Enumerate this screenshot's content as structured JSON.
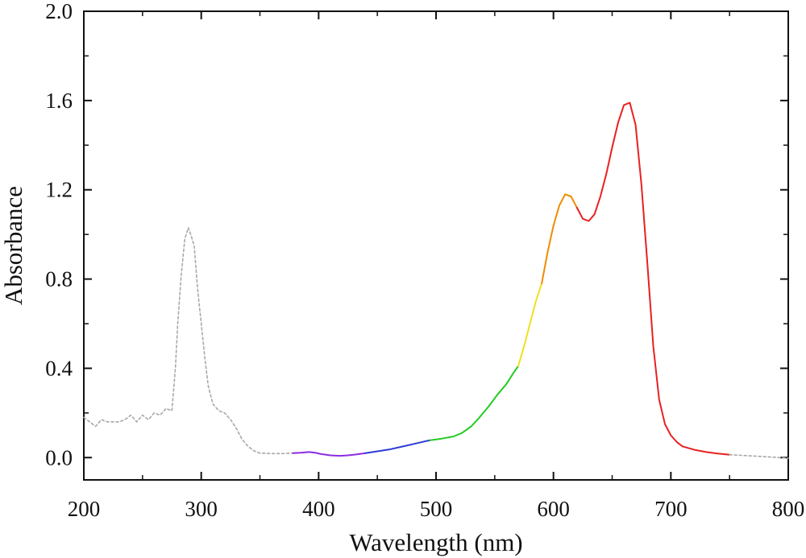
{
  "chart_data": {
    "type": "line",
    "xlabel": "Wavelength (nm)",
    "ylabel": "Absorbance",
    "xlim": [
      200,
      800
    ],
    "ylim": [
      -0.1,
      2.0
    ],
    "x_ticks": [
      200,
      300,
      400,
      500,
      600,
      700,
      800
    ],
    "x_tick_labels": [
      "200",
      "300",
      "400",
      "500",
      "600",
      "700",
      "800"
    ],
    "y_ticks": [
      0.0,
      0.4,
      0.8,
      1.2,
      1.6,
      2.0
    ],
    "y_tick_labels": [
      "0.0",
      "0.4",
      "0.8",
      "1.2",
      "1.6",
      "2.0"
    ],
    "grid": false,
    "legend": "none",
    "series": [
      {
        "style": "dotted",
        "color": "#a8a8a8",
        "x": [
          200,
          205,
          210,
          215,
          220,
          225,
          230,
          235,
          240,
          245,
          250,
          255,
          260,
          265,
          270,
          275,
          278,
          280,
          283,
          286,
          289,
          291,
          294,
          297,
          300,
          303,
          306,
          310,
          315,
          320,
          325,
          330,
          335,
          340,
          345,
          350,
          360,
          370,
          378
        ],
        "y": [
          0.18,
          0.16,
          0.14,
          0.17,
          0.16,
          0.16,
          0.16,
          0.17,
          0.19,
          0.16,
          0.19,
          0.17,
          0.2,
          0.19,
          0.22,
          0.21,
          0.4,
          0.6,
          0.82,
          0.98,
          1.03,
          1.0,
          0.95,
          0.75,
          0.6,
          0.45,
          0.32,
          0.24,
          0.21,
          0.2,
          0.17,
          0.13,
          0.08,
          0.05,
          0.03,
          0.02,
          0.018,
          0.018,
          0.02
        ]
      },
      {
        "style": "solid",
        "color": "#8a2be2",
        "x": [
          378,
          385,
          392,
          397,
          402,
          410,
          418,
          425,
          432,
          440
        ],
        "y": [
          0.02,
          0.022,
          0.025,
          0.022,
          0.016,
          0.01,
          0.008,
          0.01,
          0.014,
          0.02
        ]
      },
      {
        "style": "solid",
        "color": "#2b3bd6",
        "x": [
          440,
          450,
          460,
          470,
          480,
          490,
          495
        ],
        "y": [
          0.02,
          0.028,
          0.036,
          0.048,
          0.06,
          0.072,
          0.078
        ]
      },
      {
        "style": "solid",
        "color": "#22cc22",
        "x": [
          495,
          505,
          515,
          522,
          530,
          537,
          545,
          552,
          560,
          566,
          570
        ],
        "y": [
          0.078,
          0.085,
          0.095,
          0.11,
          0.14,
          0.18,
          0.23,
          0.28,
          0.33,
          0.38,
          0.41
        ]
      },
      {
        "style": "solid",
        "color": "#f0e020",
        "x": [
          570,
          575,
          580,
          585,
          590
        ],
        "y": [
          0.41,
          0.5,
          0.6,
          0.7,
          0.78
        ]
      },
      {
        "style": "solid",
        "color": "#f08c00",
        "x": [
          590,
          595,
          600,
          605,
          610,
          615,
          620
        ],
        "y": [
          0.78,
          0.92,
          1.04,
          1.13,
          1.18,
          1.17,
          1.12
        ]
      },
      {
        "style": "solid",
        "color": "#e82020",
        "x": [
          620,
          625,
          630,
          635,
          640,
          645,
          650,
          655,
          660,
          665,
          670,
          675,
          680,
          685,
          690,
          695,
          700,
          705,
          710,
          720,
          730,
          740,
          750
        ],
        "y": [
          1.12,
          1.07,
          1.06,
          1.09,
          1.17,
          1.27,
          1.39,
          1.5,
          1.58,
          1.59,
          1.49,
          1.22,
          0.87,
          0.5,
          0.26,
          0.15,
          0.1,
          0.07,
          0.05,
          0.035,
          0.025,
          0.018,
          0.013
        ]
      },
      {
        "style": "dotted",
        "color": "#a8a8a8",
        "x": [
          750,
          760,
          770,
          780,
          790,
          800
        ],
        "y": [
          0.013,
          0.01,
          0.007,
          0.004,
          0.001,
          -0.003
        ]
      }
    ]
  }
}
